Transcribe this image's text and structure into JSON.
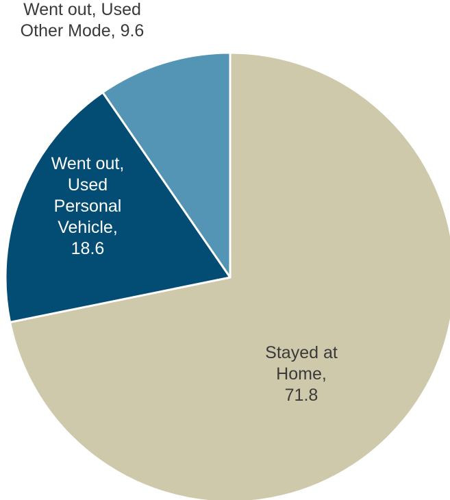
{
  "chart_data": {
    "type": "pie",
    "slices": [
      {
        "name": "Stayed at Home",
        "value": 71.8,
        "color": "#cec9aa",
        "label_lines": [
          "Stayed at",
          "Home,",
          "71.8"
        ],
        "label_color": "#3a3a3a"
      },
      {
        "name": "Went out, Used Personal Vehicle",
        "value": 18.6,
        "color": "#034c74",
        "label_lines": [
          "Went out,",
          "Used",
          "Personal",
          "Vehicle,",
          "18.6"
        ],
        "label_color": "#ffffff"
      },
      {
        "name": "Went out, Used Other Mode",
        "value": 9.6,
        "color": "#5495b6",
        "label_lines": [
          "Went out, Used",
          "Other Mode, 9.6"
        ],
        "label_color": "#3a3a3a"
      }
    ],
    "start_angle_deg": 0,
    "direction": "clockwise",
    "separator_color": "#ffffff"
  }
}
